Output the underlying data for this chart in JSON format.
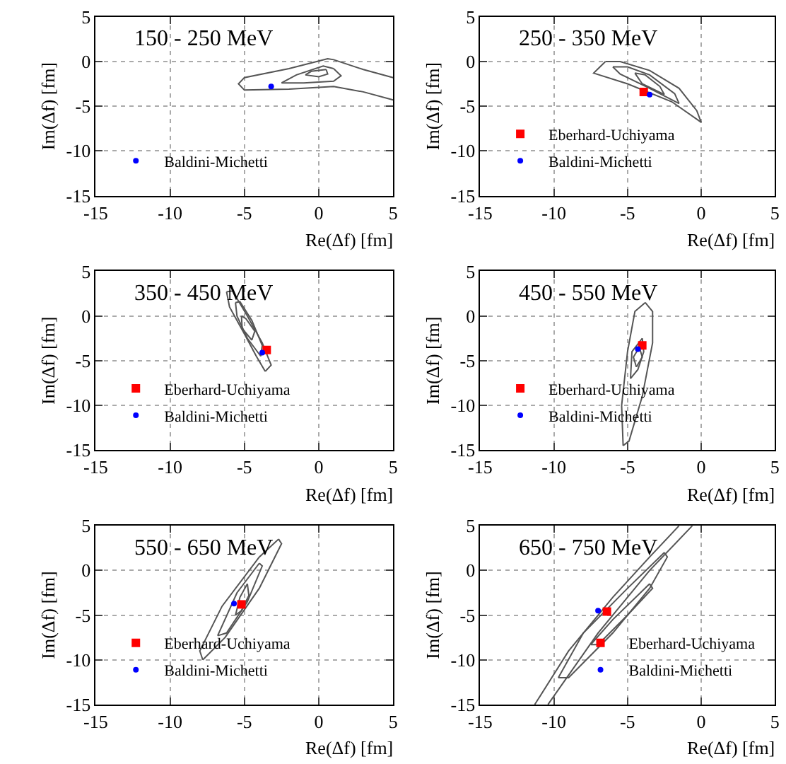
{
  "chart_data": [
    {
      "type": "scatter",
      "title": "150 - 250 MeV",
      "xlabel": "Re(Δf) [fm]",
      "ylabel": "Im(Δf) [fm]",
      "xlim": [
        -15,
        5
      ],
      "ylim": [
        -15,
        5
      ],
      "xticks": [
        -15,
        -10,
        -5,
        0,
        5
      ],
      "yticks": [
        -15,
        -10,
        -5,
        0,
        5
      ],
      "grid": true,
      "legend": "bottom left",
      "series": [
        {
          "type": "line",
          "color": "#555555",
          "marker": "none",
          "x": [
            5,
            3,
            1,
            0.6,
            -2,
            -5,
            -5.4,
            -5,
            -2,
            1,
            3,
            5
          ],
          "values": [
            -1.8,
            -0.9,
            0.2,
            0.3,
            -0.8,
            -1.8,
            -2.5,
            -3.2,
            -3.1,
            -2.8,
            -3.4,
            -4.3
          ]
        },
        {
          "type": "line",
          "color": "#555555",
          "marker": "none",
          "x": [
            1,
            0.3,
            -1.5,
            -2.5
          ],
          "values": [
            -0.8,
            -0.5,
            -1.5,
            -2.4
          ]
        },
        {
          "type": "line",
          "color": "#555555",
          "marker": "none",
          "x": [
            -2.5,
            -1,
            1,
            1.5,
            1
          ],
          "values": [
            -2.4,
            -2.4,
            -2.2,
            -1.6,
            -0.8
          ]
        },
        {
          "type": "line",
          "color": "#555555",
          "marker": "none",
          "x": [
            0.5,
            -0.5,
            -0.9
          ],
          "values": [
            -0.9,
            -1.1,
            -1.5
          ]
        },
        {
          "type": "line",
          "color": "#555555",
          "marker": "none",
          "x": [
            -0.9,
            0,
            0.6,
            0.5
          ],
          "values": [
            -1.5,
            -1.7,
            -1.4,
            -0.9
          ]
        },
        {
          "name": "Baldini-Michetti",
          "color": "#0000ff",
          "marker": "circle",
          "x": [
            -3.2
          ],
          "values": [
            -2.8
          ]
        }
      ]
    },
    {
      "type": "scatter",
      "title": "250 - 350 MeV",
      "xlabel": "Re(Δf) [fm]",
      "ylabel": "Im(Δf) [fm]",
      "xlim": [
        -15,
        5
      ],
      "ylim": [
        -15,
        5
      ],
      "xticks": [
        -15,
        -10,
        -5,
        0,
        5
      ],
      "yticks": [
        -15,
        -10,
        -5,
        0,
        5
      ],
      "grid": true,
      "legend": "bottom left",
      "series": [
        {
          "type": "line",
          "color": "#555555",
          "marker": "none",
          "x": [
            -6.5,
            -7.3,
            -5,
            -2,
            0
          ],
          "values": [
            0,
            -1.3,
            -2.5,
            -4.5,
            -6.8
          ]
        },
        {
          "type": "line",
          "color": "#555555",
          "marker": "none",
          "x": [
            0,
            -0.3,
            -1.5,
            -3.5,
            -5.5,
            -6.5
          ],
          "values": [
            -6.8,
            -5.5,
            -3,
            -1,
            0,
            0
          ]
        },
        {
          "type": "line",
          "color": "#555555",
          "marker": "none",
          "x": [
            -6,
            -5.5,
            -3.5,
            -1.5
          ],
          "values": [
            -0.6,
            -1.4,
            -3,
            -4.7
          ]
        },
        {
          "type": "line",
          "color": "#555555",
          "marker": "none",
          "x": [
            -1.5,
            -1.8,
            -3.5,
            -5,
            -6
          ],
          "values": [
            -4.7,
            -3.6,
            -1.5,
            -0.6,
            -0.6
          ]
        },
        {
          "type": "line",
          "color": "#555555",
          "marker": "none",
          "x": [
            -4.5,
            -4,
            -2.5
          ],
          "values": [
            -1.3,
            -2.5,
            -3.7
          ]
        },
        {
          "type": "line",
          "color": "#555555",
          "marker": "none",
          "x": [
            -2.5,
            -2.8,
            -3.8,
            -4.5
          ],
          "values": [
            -3.7,
            -2.8,
            -1.5,
            -1.3
          ]
        },
        {
          "name": "Eberhard-Uchiyama",
          "color": "#ff0000",
          "marker": "square",
          "x": [
            -3.9
          ],
          "values": [
            -3.4
          ]
        },
        {
          "name": "Baldini-Michetti",
          "color": "#0000ff",
          "marker": "circle",
          "x": [
            -3.5
          ],
          "values": [
            -3.7
          ]
        }
      ]
    },
    {
      "type": "scatter",
      "title": "350 - 450 MeV",
      "xlabel": "Re(Δf) [fm]",
      "ylabel": "Im(Δf) [fm]",
      "xlim": [
        -15,
        5
      ],
      "ylim": [
        -15,
        5
      ],
      "xticks": [
        -15,
        -10,
        -5,
        0,
        5
      ],
      "yticks": [
        -15,
        -10,
        -5,
        0,
        5
      ],
      "grid": true,
      "legend": "bottom left",
      "series": [
        {
          "type": "line",
          "color": "#555555",
          "marker": "none",
          "x": [
            -6.2,
            -6,
            -5,
            -4.2,
            -3.6
          ],
          "values": [
            2.7,
            1,
            -2,
            -4.5,
            -6.2
          ]
        },
        {
          "type": "line",
          "color": "#555555",
          "marker": "none",
          "x": [
            -3.6,
            -3.2,
            -3.8,
            -4.8,
            -5.8,
            -6.2
          ],
          "values": [
            -6.2,
            -5.5,
            -3,
            0,
            2.8,
            2.7
          ]
        },
        {
          "type": "line",
          "color": "#555555",
          "marker": "none",
          "x": [
            -5.6,
            -5.5,
            -4.8,
            -3.9
          ],
          "values": [
            1.5,
            0,
            -2.5,
            -4.5
          ]
        },
        {
          "type": "line",
          "color": "#555555",
          "marker": "none",
          "x": [
            -3.9,
            -3.8,
            -4.5,
            -5.3,
            -5.6
          ],
          "values": [
            -4.5,
            -3.3,
            -0.5,
            1.6,
            1.5
          ]
        },
        {
          "type": "line",
          "color": "#555555",
          "marker": "none",
          "x": [
            -5.2,
            -5.15,
            -4.5
          ],
          "values": [
            0,
            -1.4,
            -2.7
          ]
        },
        {
          "type": "line",
          "color": "#555555",
          "marker": "none",
          "x": [
            -4.5,
            -4.3,
            -4.9,
            -5.2
          ],
          "values": [
            -2.7,
            -1.7,
            -0.3,
            0
          ]
        },
        {
          "name": "Eberhard-Uchiyama",
          "color": "#ff0000",
          "marker": "square",
          "x": [
            -3.5
          ],
          "values": [
            -3.8
          ]
        },
        {
          "name": "Baldini-Michetti",
          "color": "#0000ff",
          "marker": "circle",
          "x": [
            -3.8
          ],
          "values": [
            -4.1
          ]
        }
      ]
    },
    {
      "type": "scatter",
      "title": "450 - 550 MeV",
      "xlabel": "Re(Δf) [fm]",
      "ylabel": "Im(Δf) [fm]",
      "xlim": [
        -15,
        5
      ],
      "ylim": [
        -15,
        5
      ],
      "xticks": [
        -15,
        -10,
        -5,
        0,
        5
      ],
      "yticks": [
        -15,
        -10,
        -5,
        0,
        5
      ],
      "grid": true,
      "legend": "bottom left",
      "series": [
        {
          "type": "line",
          "color": "#555555",
          "marker": "none",
          "x": [
            -3.8,
            -4.5,
            -5,
            -5.4,
            -5.3
          ],
          "values": [
            1.5,
            0.5,
            -4,
            -10,
            -14.5
          ]
        },
        {
          "type": "line",
          "color": "#555555",
          "marker": "none",
          "x": [
            -5.3,
            -4.9,
            -4,
            -3.3,
            -3.3,
            -3.8
          ],
          "values": [
            -14.5,
            -14,
            -9,
            -3,
            0.5,
            1.5
          ]
        },
        {
          "type": "line",
          "color": "#555555",
          "marker": "none",
          "x": [
            -4,
            -4.7,
            -4.8
          ],
          "values": [
            -2.5,
            -4,
            -7
          ]
        },
        {
          "type": "line",
          "color": "#555555",
          "marker": "none",
          "x": [
            -4.8,
            -4.3,
            -3.9,
            -4
          ],
          "values": [
            -7,
            -6,
            -4,
            -2.5
          ]
        },
        {
          "type": "line",
          "color": "#555555",
          "marker": "none",
          "x": [
            -4.2,
            -4.6,
            -4.4
          ],
          "values": [
            -3.5,
            -4.6,
            -5.7
          ]
        },
        {
          "type": "line",
          "color": "#555555",
          "marker": "none",
          "x": [
            -4.4,
            -4,
            -4.2
          ],
          "values": [
            -5.7,
            -4.6,
            -3.5
          ]
        },
        {
          "name": "Eberhard-Uchiyama",
          "color": "#ff0000",
          "marker": "square",
          "x": [
            -4
          ],
          "values": [
            -3.3
          ]
        },
        {
          "name": "Baldini-Michetti",
          "color": "#0000ff",
          "marker": "circle",
          "x": [
            -4.3
          ],
          "values": [
            -3.7
          ]
        }
      ]
    },
    {
      "type": "scatter",
      "title": "550 - 650 MeV",
      "xlabel": "Re(Δf) [fm]",
      "ylabel": "Im(Δf) [fm]",
      "xlim": [
        -15,
        5
      ],
      "ylim": [
        -15,
        5
      ],
      "xticks": [
        -15,
        -10,
        -5,
        0,
        5
      ],
      "yticks": [
        -15,
        -10,
        -5,
        0,
        5
      ],
      "grid": true,
      "legend": "bottom left",
      "series": [
        {
          "type": "line",
          "color": "#555555",
          "marker": "none",
          "x": [
            -2.7,
            -4,
            -6.5,
            -8,
            -7.8
          ],
          "values": [
            3.5,
            1.5,
            -4,
            -9,
            -10
          ]
        },
        {
          "type": "line",
          "color": "#555555",
          "marker": "none",
          "x": [
            -7.8,
            -6.3,
            -4,
            -2.5,
            -2.7
          ],
          "values": [
            -10,
            -7.5,
            -2,
            3,
            3.5
          ]
        },
        {
          "type": "line",
          "color": "#555555",
          "marker": "none",
          "x": [
            -4,
            -5.5,
            -6.8
          ],
          "values": [
            0.8,
            -2.5,
            -7.3
          ]
        },
        {
          "type": "line",
          "color": "#555555",
          "marker": "none",
          "x": [
            -6.8,
            -6.2,
            -4.8,
            -3.8,
            -4
          ],
          "values": [
            -7.3,
            -7,
            -3.5,
            0.5,
            0.8
          ]
        },
        {
          "type": "line",
          "color": "#555555",
          "marker": "none",
          "x": [
            -4.8,
            -5.3,
            -5.6
          ],
          "values": [
            -1.5,
            -3,
            -5
          ]
        },
        {
          "type": "line",
          "color": "#555555",
          "marker": "none",
          "x": [
            -5.6,
            -5.2,
            -4.7,
            -4.8
          ],
          "values": [
            -5,
            -4.5,
            -2.8,
            -1.5
          ]
        },
        {
          "name": "Eberhard-Uchiyama",
          "color": "#ff0000",
          "marker": "square",
          "x": [
            -5.2
          ],
          "values": [
            -3.8
          ]
        },
        {
          "name": "Baldini-Michetti",
          "color": "#0000ff",
          "marker": "circle",
          "x": [
            -5.7
          ],
          "values": [
            -3.7
          ]
        }
      ]
    },
    {
      "type": "scatter",
      "title": "650 - 750 MeV",
      "xlabel": "Re(Δf) [fm]",
      "ylabel": "Im(Δf) [fm]",
      "xlim": [
        -15,
        5
      ],
      "ylim": [
        -15,
        5
      ],
      "xticks": [
        -15,
        -10,
        -5,
        0,
        5
      ],
      "yticks": [
        -15,
        -10,
        -5,
        0,
        5
      ],
      "grid": true,
      "legend": "bottom right",
      "series": [
        {
          "type": "line",
          "color": "#555555",
          "marker": "none",
          "x": [
            -11.3,
            -9,
            -6,
            -3.5,
            -1.5
          ],
          "values": [
            -15,
            -9,
            -3,
            1.5,
            5
          ]
        },
        {
          "type": "line",
          "color": "#555555",
          "marker": "none",
          "x": [
            -0.6,
            -3.5,
            -7,
            -10.4
          ],
          "values": [
            5,
            0,
            -7,
            -15
          ]
        },
        {
          "type": "line",
          "color": "#555555",
          "marker": "none",
          "x": [
            -2.5,
            -5,
            -8,
            -9.7
          ],
          "values": [
            2,
            -2,
            -7,
            -12
          ]
        },
        {
          "type": "line",
          "color": "#555555",
          "marker": "none",
          "x": [
            -9.7,
            -9,
            -6,
            -3.5,
            -2.3,
            -2.5
          ],
          "values": [
            -12,
            -12,
            -7,
            -2,
            1.5,
            2
          ]
        },
        {
          "type": "line",
          "color": "#555555",
          "marker": "none",
          "x": [
            -3.5,
            -6,
            -7.5
          ],
          "values": [
            -1.5,
            -5.5,
            -8.3
          ]
        },
        {
          "type": "line",
          "color": "#555555",
          "marker": "none",
          "x": [
            -7.5,
            -7,
            -5,
            -3.3,
            -3.5
          ],
          "values": [
            -8.3,
            -8.3,
            -5,
            -2,
            -1.5
          ]
        },
        {
          "name": "Eberhard-Uchiyama",
          "color": "#ff0000",
          "marker": "square",
          "x": [
            -6.4
          ],
          "values": [
            -4.6
          ]
        },
        {
          "name": "Baldini-Michetti",
          "color": "#0000ff",
          "marker": "circle",
          "x": [
            -7
          ],
          "values": [
            -4.5
          ]
        }
      ]
    }
  ]
}
